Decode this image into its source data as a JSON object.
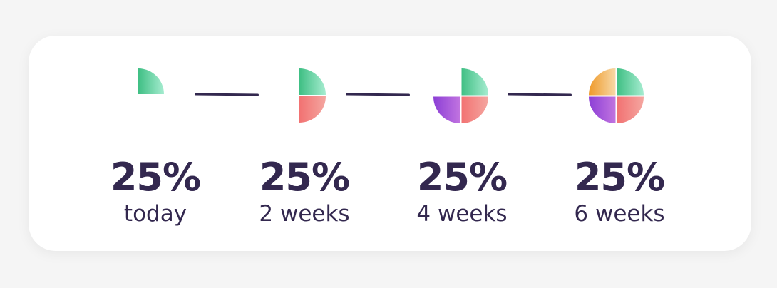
{
  "steps": [
    {
      "percent": "25%",
      "label": "today"
    },
    {
      "percent": "25%",
      "label": "2 weeks"
    },
    {
      "percent": "25%",
      "label": "4 weeks"
    },
    {
      "percent": "25%",
      "label": "6 weeks"
    }
  ],
  "colors": {
    "text": "#33284f",
    "green": [
      "#3fbf84",
      "#a6ecd0"
    ],
    "coral": [
      "#f27272",
      "#f4a6a0"
    ],
    "purple": [
      "#8c3fd6",
      "#c174e0"
    ],
    "orange": [
      "#ef9a2a",
      "#f7d8a6"
    ]
  },
  "icons": [
    "quarter-pie-icon",
    "half-pie-icon",
    "three-quarter-pie-icon",
    "full-pie-icon"
  ]
}
